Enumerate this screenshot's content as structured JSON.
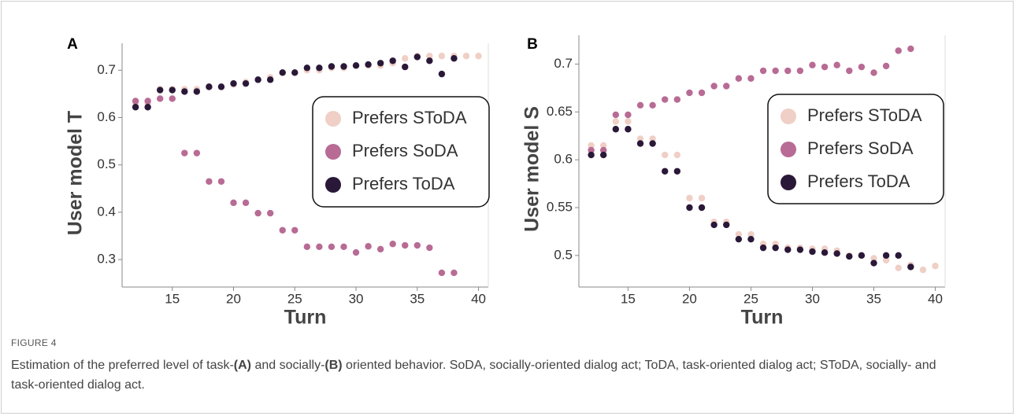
{
  "chart_data": [
    {
      "type": "scatter",
      "panel": "A",
      "xlabel": "Turn",
      "ylabel": "User model T",
      "x": [
        12,
        13,
        14,
        15,
        16,
        17,
        18,
        19,
        20,
        21,
        22,
        23,
        24,
        25,
        26,
        27,
        28,
        29,
        30,
        31,
        32,
        33,
        34,
        35,
        36,
        37,
        38,
        39,
        40
      ],
      "series": [
        {
          "name": "Prefers SToDA",
          "color": "#efcfc6",
          "values": [
            0.63,
            0.63,
            0.66,
            0.66,
            0.66,
            0.66,
            0.665,
            0.665,
            0.67,
            0.675,
            0.68,
            0.685,
            0.695,
            0.695,
            0.7,
            0.7,
            0.705,
            0.705,
            0.71,
            0.71,
            0.71,
            0.715,
            0.725,
            0.73,
            0.73,
            0.73,
            0.73,
            0.73,
            0.73
          ]
        },
        {
          "name": "Prefers SoDA",
          "color": "#b86b94",
          "values": [
            0.635,
            0.635,
            0.64,
            0.64,
            0.525,
            0.525,
            0.465,
            0.465,
            0.42,
            0.42,
            0.398,
            0.398,
            0.362,
            0.362,
            0.327,
            0.327,
            0.327,
            0.327,
            0.315,
            0.328,
            0.322,
            0.333,
            0.33,
            0.33,
            0.325,
            0.272,
            0.272,
            null,
            null
          ]
        },
        {
          "name": "Prefers ToDA",
          "color": "#2a1838",
          "values": [
            0.622,
            0.622,
            0.658,
            0.658,
            0.655,
            0.655,
            0.665,
            0.665,
            0.672,
            0.672,
            0.68,
            0.68,
            0.695,
            0.695,
            0.705,
            0.705,
            0.708,
            0.708,
            0.71,
            0.712,
            0.715,
            0.72,
            0.707,
            0.728,
            0.72,
            0.692,
            0.725,
            null,
            null
          ]
        }
      ],
      "xlim": [
        10.9,
        40.8
      ],
      "ylim": [
        0.242,
        0.757
      ],
      "xticks": [
        15,
        20,
        25,
        30,
        35,
        40
      ],
      "yticks": [
        0.3,
        0.4,
        0.5,
        0.6,
        0.7
      ],
      "legend": "right"
    },
    {
      "type": "scatter",
      "panel": "B",
      "xlabel": "Turn",
      "ylabel": "User model S",
      "x": [
        12,
        13,
        14,
        15,
        16,
        17,
        18,
        19,
        20,
        21,
        22,
        23,
        24,
        25,
        26,
        27,
        28,
        29,
        30,
        31,
        32,
        33,
        34,
        35,
        36,
        37,
        38,
        39,
        40
      ],
      "series": [
        {
          "name": "Prefers SToDA",
          "color": "#efcfc6",
          "values": [
            0.615,
            0.615,
            0.64,
            0.64,
            0.622,
            0.622,
            0.605,
            0.605,
            0.56,
            0.56,
            0.535,
            0.535,
            0.522,
            0.522,
            0.512,
            0.512,
            0.508,
            0.508,
            0.507,
            0.507,
            0.505,
            0.5,
            0.5,
            0.497,
            0.495,
            0.487,
            0.49,
            0.485,
            0.489
          ]
        },
        {
          "name": "Prefers SoDA",
          "color": "#b86b94",
          "values": [
            0.61,
            0.61,
            0.647,
            0.647,
            0.657,
            0.657,
            0.663,
            0.663,
            0.67,
            0.67,
            0.677,
            0.677,
            0.685,
            0.685,
            0.693,
            0.693,
            0.693,
            0.693,
            0.699,
            0.697,
            0.699,
            0.693,
            0.697,
            0.691,
            0.698,
            0.714,
            0.716,
            null,
            null
          ]
        },
        {
          "name": "Prefers ToDA",
          "color": "#2a1838",
          "values": [
            0.605,
            0.605,
            0.632,
            0.632,
            0.617,
            0.617,
            0.588,
            0.588,
            0.55,
            0.55,
            0.532,
            0.532,
            0.517,
            0.517,
            0.508,
            0.508,
            0.506,
            0.506,
            0.504,
            0.503,
            0.502,
            0.499,
            0.5,
            0.492,
            0.5,
            0.5,
            0.488,
            null,
            null
          ]
        }
      ],
      "xlim": [
        11.0,
        40.8
      ],
      "ylim": [
        0.467,
        0.73
      ],
      "xticks": [
        15,
        20,
        25,
        30,
        35,
        40
      ],
      "yticks": [
        0.5,
        0.55,
        0.6,
        0.65,
        0.7
      ],
      "legend": "right"
    }
  ],
  "figure": {
    "label": "FIGURE 4",
    "caption": [
      "Estimation of the preferred level of task-",
      "(A)",
      " and socially-",
      "(B)",
      " oriented behavior. SoDA, socially-oriented dialog act; ToDA, task-oriented dialog act; SToDA, socially- and task-oriented dialog act."
    ]
  }
}
